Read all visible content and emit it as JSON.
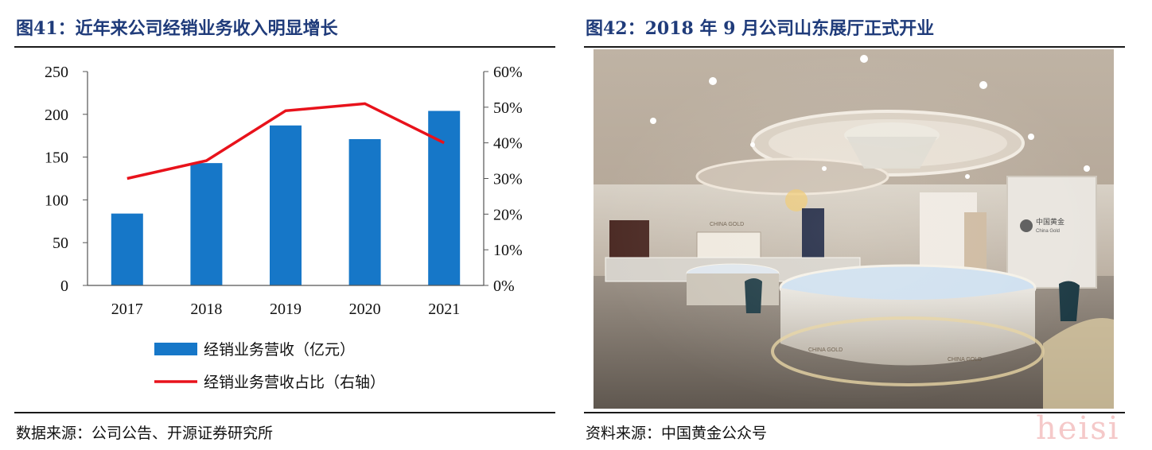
{
  "left_figure": {
    "title": "图41：近年来公司经销业务收入明显增长",
    "source": "数据来源：公司公告、开源证券研究所"
  },
  "right_figure": {
    "title": "图42：2018 年 9 月公司山东展厅正式开业",
    "source": "资料来源：中国黄金公众号",
    "photo_signs": {
      "sign_left": "CHINA GOLD",
      "sign_right_cn": "中国黄金",
      "sign_right_en": "China Gold",
      "counter_left": "CHINA GOLD",
      "counter_right": "CHINA GOLD"
    }
  },
  "watermark": "heisi",
  "chart_data": {
    "type": "bar",
    "categories": [
      "2017",
      "2018",
      "2019",
      "2020",
      "2021"
    ],
    "series": [
      {
        "name": "经销业务营收（亿元）",
        "type": "bar",
        "axis": "left",
        "color": "#1677C8",
        "values": [
          84,
          143,
          187,
          171,
          204
        ]
      },
      {
        "name": "经销业务营收占比（右轴）",
        "type": "line",
        "axis": "right",
        "color": "#E8121B",
        "values": [
          30,
          35,
          49,
          51,
          40
        ]
      }
    ],
    "y_left": {
      "min": 0,
      "max": 250,
      "ticks": [
        "0",
        "50",
        "100",
        "150",
        "200",
        "250"
      ]
    },
    "y_right": {
      "min": 0,
      "max": 60,
      "ticks": [
        "0%",
        "10%",
        "20%",
        "30%",
        "40%",
        "50%",
        "60%"
      ]
    },
    "grid": false,
    "legend": "bottom"
  }
}
